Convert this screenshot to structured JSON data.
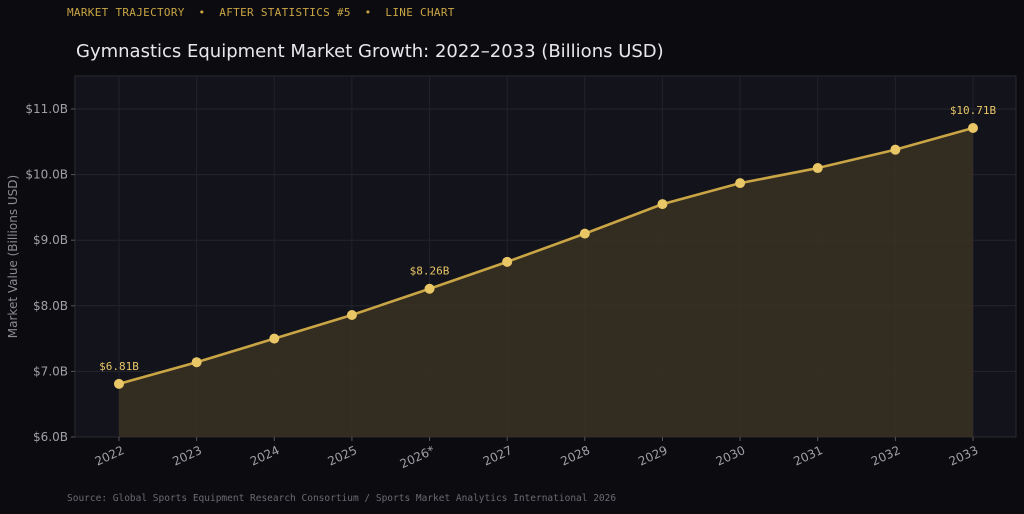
{
  "header": {
    "kicker": "MARKET TRAJECTORY  •  AFTER STATISTICS #5  •  LINE CHART"
  },
  "footer": {
    "source": "Source: Global Sports Equipment Research Consortium / Sports Market Analytics International 2026"
  },
  "colors": {
    "background": "#0c0b0f",
    "plot_background": "#13131b",
    "line": "#c9a545",
    "marker": "#e9c766",
    "area": "#3a3122",
    "label": "#e9c766"
  },
  "chart_data": {
    "type": "line",
    "title": "Gymnastics Equipment Market Growth: 2022–2033 (Billions USD)",
    "xlabel": "",
    "ylabel": "Market Value (Billions USD)",
    "categories": [
      "2022",
      "2023",
      "2024",
      "2025",
      "2026*",
      "2027",
      "2028",
      "2029",
      "2030",
      "2031",
      "2032",
      "2033"
    ],
    "series": [
      {
        "values": [
          6.81,
          7.14,
          7.5,
          7.86,
          8.26,
          8.67,
          9.1,
          9.55,
          9.87,
          10.1,
          10.38,
          10.71
        ]
      }
    ],
    "ylim": [
      6.0,
      11.5
    ],
    "yticks": [
      6.0,
      7.0,
      8.0,
      9.0,
      10.0,
      11.0
    ],
    "ytick_labels": [
      "$6.0B",
      "$7.0B",
      "$8.0B",
      "$9.0B",
      "$10.0B",
      "$11.0B"
    ],
    "annotations": [
      {
        "index": 0,
        "text": "$6.81B"
      },
      {
        "index": 4,
        "text": "$8.26B"
      },
      {
        "index": 11,
        "text": "$10.71B"
      }
    ],
    "area_fill": true,
    "grid": true
  }
}
